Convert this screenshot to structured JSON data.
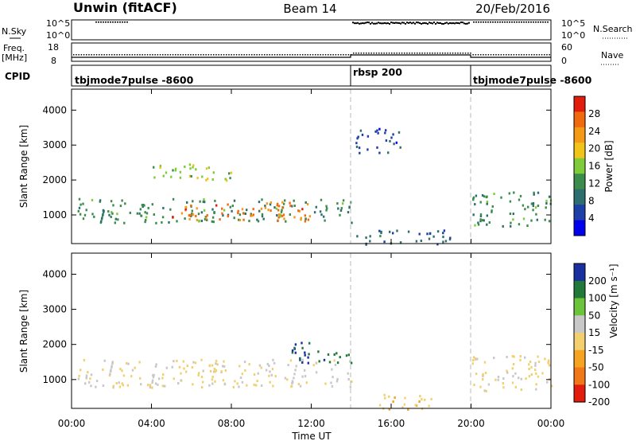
{
  "header": {
    "station": "Unwin (fitACF)",
    "beam": "Beam 14",
    "date": "20/Feb/2016"
  },
  "strip_panels": {
    "nsky": {
      "label": "N.Sky",
      "ticks": [
        "10^5",
        "10^0"
      ]
    },
    "nsearch": {
      "label": "N.Search",
      "ticks": [
        "10^5",
        "10^0"
      ]
    },
    "freq": {
      "label_line1": "Freq.",
      "label_line2": "[MHz]",
      "ticks": [
        "18",
        "8"
      ]
    },
    "nave": {
      "label": "Nave",
      "ticks": [
        "60",
        "0"
      ]
    },
    "cpid": {
      "label": "CPID",
      "segments": [
        "tbjmode7pulse -8600",
        "rbsp 200",
        "tbjmode7pulse -8600"
      ]
    }
  },
  "power_panel": {
    "ylabel": "Slant Range [km]",
    "yticks": [
      "4000",
      "3000",
      "2000",
      "1000"
    ],
    "colorbar_label": "Power [dB]",
    "colorbar_ticks": [
      "28",
      "24",
      "20",
      "16",
      "12",
      "8",
      "4"
    ]
  },
  "velocity_panel": {
    "ylabel": "Slant Range [km]",
    "yticks": [
      "4000",
      "3000",
      "2000",
      "1000"
    ],
    "colorbar_label": "Velocity [m s⁻¹]",
    "colorbar_ticks": [
      "200",
      "100",
      "50",
      "15",
      "-15",
      "-50",
      "-100",
      "-200"
    ]
  },
  "xaxis": {
    "label": "Time UT",
    "ticks": [
      "00:00",
      "04:00",
      "08:00",
      "12:00",
      "16:00",
      "20:00",
      "00:00"
    ]
  },
  "chart_data": [
    {
      "type": "heatmap",
      "title": "Unwin (fitACF) Beam 14 20/Feb/2016",
      "xlabel": "Time UT",
      "ylabel": "Slant Range [km]",
      "xlim_hours": [
        0,
        24
      ],
      "ylim": [
        180,
        4600
      ],
      "colorbar": "Power [dB]",
      "colorbar_range": [
        0,
        32
      ],
      "mode_boundaries_hours": [
        14,
        20
      ],
      "regions": [
        {
          "t": [
            0.3,
            14
          ],
          "range": [
            800,
            1500
          ],
          "value": 12
        },
        {
          "t": [
            5,
            12
          ],
          "range": [
            850,
            1400
          ],
          "value": 26
        },
        {
          "t": [
            4,
            8
          ],
          "range": [
            2000,
            2500
          ],
          "value": 16
        },
        {
          "t": [
            14.2,
            16.5
          ],
          "range": [
            2800,
            3500
          ],
          "value": 6
        },
        {
          "t": [
            14.2,
            19
          ],
          "range": [
            180,
            600
          ],
          "value": 8
        },
        {
          "t": [
            20,
            24
          ],
          "range": [
            700,
            1700
          ],
          "value": 12
        }
      ]
    },
    {
      "type": "heatmap",
      "title": "",
      "xlabel": "Time UT",
      "ylabel": "Slant Range [km]",
      "xlim_hours": [
        0,
        24
      ],
      "ylim": [
        180,
        4600
      ],
      "colorbar": "Velocity [m s⁻¹]",
      "colorbar_range": [
        -200,
        200
      ],
      "mode_boundaries_hours": [
        14,
        20
      ],
      "regions": [
        {
          "t": [
            0.3,
            14
          ],
          "range": [
            800,
            1600
          ],
          "value": 0
        },
        {
          "t": [
            11,
            14
          ],
          "range": [
            1500,
            2100
          ],
          "value": 150
        },
        {
          "t": [
            15,
            18
          ],
          "range": [
            180,
            600
          ],
          "value": -40
        },
        {
          "t": [
            20,
            24
          ],
          "range": [
            700,
            1700
          ],
          "value": -10
        }
      ]
    }
  ],
  "colors": {
    "power_scale": [
      "#0000ee",
      "#1e3fa8",
      "#2e6e6e",
      "#3c8c4c",
      "#7fcc3a",
      "#f0c419",
      "#f59a16",
      "#f26a10",
      "#e21d0e"
    ],
    "velocity_scale": [
      "#1a2fa0",
      "#227a3a",
      "#6cc43a",
      "#c8c8c8",
      "#f2d070",
      "#f5a320",
      "#f27718",
      "#e21d0e"
    ]
  }
}
